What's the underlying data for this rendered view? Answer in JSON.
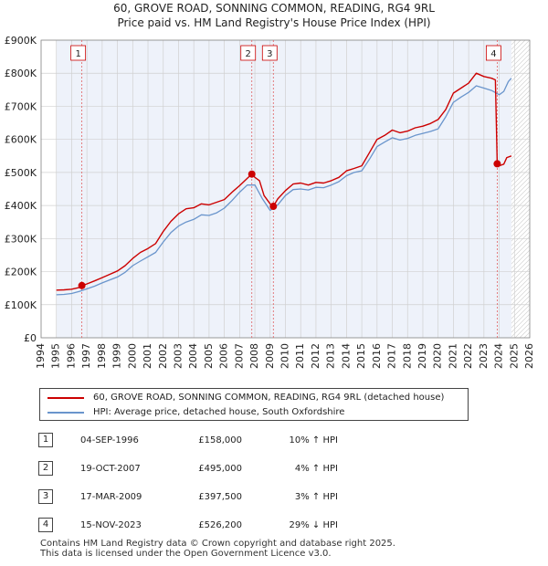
{
  "chart_data": {
    "type": "line",
    "title": "60, GROVE ROAD, SONNING COMMON, READING, RG4 9RL",
    "subtitle": "Price paid vs. HM Land Registry's House Price Index (HPI)",
    "xlim": [
      1994,
      2026
    ],
    "ylim": [
      0,
      900000
    ],
    "x_ticks": [
      "1994",
      "1995",
      "1996",
      "1997",
      "1998",
      "1999",
      "2000",
      "2001",
      "2002",
      "2003",
      "2004",
      "2005",
      "2006",
      "2007",
      "2008",
      "2009",
      "2010",
      "2011",
      "2012",
      "2013",
      "2014",
      "2015",
      "2016",
      "2017",
      "2018",
      "2019",
      "2020",
      "2021",
      "2022",
      "2023",
      "2024",
      "2025",
      "2026"
    ],
    "y_ticks": [
      {
        "value": 0,
        "label": "£0"
      },
      {
        "value": 100000,
        "label": "£100K"
      },
      {
        "value": 200000,
        "label": "£200K"
      },
      {
        "value": 300000,
        "label": "£300K"
      },
      {
        "value": 400000,
        "label": "£400K"
      },
      {
        "value": 500000,
        "label": "£500K"
      },
      {
        "value": 600000,
        "label": "£600K"
      },
      {
        "value": 700000,
        "label": "£700K"
      },
      {
        "value": 800000,
        "label": "£800K"
      },
      {
        "value": 900000,
        "label": "£900K"
      }
    ],
    "data_start": 1995.0,
    "data_end": 2024.8,
    "shaded_ranges": [
      [
        1994,
        1995.0
      ],
      [
        2024.8,
        2026
      ]
    ],
    "series": [
      {
        "name": "60, GROVE ROAD, SONNING COMMON, READING, RG4 9RL (detached house)",
        "color": "#cc0000",
        "points": [
          [
            1995.0,
            144000
          ],
          [
            1995.5,
            145000
          ],
          [
            1996.0,
            147000
          ],
          [
            1996.5,
            152000
          ],
          [
            1996.67,
            158000
          ],
          [
            1997.0,
            163000
          ],
          [
            1997.5,
            172000
          ],
          [
            1998.0,
            182000
          ],
          [
            1998.5,
            192000
          ],
          [
            1999.0,
            202000
          ],
          [
            1999.5,
            218000
          ],
          [
            2000.0,
            240000
          ],
          [
            2000.5,
            258000
          ],
          [
            2001.0,
            270000
          ],
          [
            2001.5,
            285000
          ],
          [
            2002.0,
            322000
          ],
          [
            2002.5,
            352000
          ],
          [
            2003.0,
            375000
          ],
          [
            2003.5,
            390000
          ],
          [
            2004.0,
            393000
          ],
          [
            2004.5,
            405000
          ],
          [
            2005.0,
            402000
          ],
          [
            2005.5,
            410000
          ],
          [
            2006.0,
            418000
          ],
          [
            2006.5,
            440000
          ],
          [
            2007.0,
            460000
          ],
          [
            2007.5,
            482000
          ],
          [
            2007.8,
            495000
          ],
          [
            2008.0,
            485000
          ],
          [
            2008.3,
            475000
          ],
          [
            2008.6,
            430000
          ],
          [
            2009.0,
            405000
          ],
          [
            2009.21,
            397500
          ],
          [
            2009.5,
            420000
          ],
          [
            2010.0,
            445000
          ],
          [
            2010.5,
            465000
          ],
          [
            2011.0,
            468000
          ],
          [
            2011.5,
            462000
          ],
          [
            2012.0,
            470000
          ],
          [
            2012.5,
            468000
          ],
          [
            2013.0,
            475000
          ],
          [
            2013.5,
            485000
          ],
          [
            2014.0,
            505000
          ],
          [
            2014.5,
            512000
          ],
          [
            2015.0,
            520000
          ],
          [
            2015.5,
            560000
          ],
          [
            2016.0,
            600000
          ],
          [
            2016.5,
            612000
          ],
          [
            2017.0,
            628000
          ],
          [
            2017.5,
            620000
          ],
          [
            2018.0,
            625000
          ],
          [
            2018.5,
            635000
          ],
          [
            2019.0,
            640000
          ],
          [
            2019.5,
            648000
          ],
          [
            2020.0,
            660000
          ],
          [
            2020.5,
            690000
          ],
          [
            2021.0,
            740000
          ],
          [
            2021.5,
            755000
          ],
          [
            2022.0,
            770000
          ],
          [
            2022.5,
            800000
          ],
          [
            2023.0,
            790000
          ],
          [
            2023.5,
            785000
          ],
          [
            2023.75,
            780000
          ],
          [
            2023.87,
            526200
          ],
          [
            2024.0,
            520000
          ],
          [
            2024.3,
            525000
          ],
          [
            2024.5,
            545000
          ],
          [
            2024.8,
            550000
          ]
        ]
      },
      {
        "name": "HPI: Average price, detached house, South Oxfordshire",
        "color": "#6a95cc",
        "points": [
          [
            1995.0,
            130000
          ],
          [
            1995.5,
            131000
          ],
          [
            1996.0,
            134000
          ],
          [
            1996.5,
            140000
          ],
          [
            1997.0,
            148000
          ],
          [
            1997.5,
            156000
          ],
          [
            1998.0,
            166000
          ],
          [
            1998.5,
            175000
          ],
          [
            1999.0,
            184000
          ],
          [
            1999.5,
            198000
          ],
          [
            2000.0,
            218000
          ],
          [
            2000.5,
            232000
          ],
          [
            2001.0,
            245000
          ],
          [
            2001.5,
            258000
          ],
          [
            2002.0,
            290000
          ],
          [
            2002.5,
            318000
          ],
          [
            2003.0,
            338000
          ],
          [
            2003.5,
            350000
          ],
          [
            2004.0,
            358000
          ],
          [
            2004.5,
            372000
          ],
          [
            2005.0,
            370000
          ],
          [
            2005.5,
            378000
          ],
          [
            2006.0,
            392000
          ],
          [
            2006.5,
            415000
          ],
          [
            2007.0,
            440000
          ],
          [
            2007.5,
            462000
          ],
          [
            2008.0,
            462000
          ],
          [
            2008.5,
            420000
          ],
          [
            2009.0,
            385000
          ],
          [
            2009.5,
            402000
          ],
          [
            2010.0,
            430000
          ],
          [
            2010.5,
            448000
          ],
          [
            2011.0,
            450000
          ],
          [
            2011.5,
            447000
          ],
          [
            2012.0,
            455000
          ],
          [
            2012.5,
            454000
          ],
          [
            2013.0,
            462000
          ],
          [
            2013.5,
            472000
          ],
          [
            2014.0,
            490000
          ],
          [
            2014.5,
            500000
          ],
          [
            2015.0,
            505000
          ],
          [
            2015.5,
            540000
          ],
          [
            2016.0,
            578000
          ],
          [
            2016.5,
            592000
          ],
          [
            2017.0,
            605000
          ],
          [
            2017.5,
            598000
          ],
          [
            2018.0,
            603000
          ],
          [
            2018.5,
            612000
          ],
          [
            2019.0,
            618000
          ],
          [
            2019.5,
            624000
          ],
          [
            2020.0,
            632000
          ],
          [
            2020.5,
            668000
          ],
          [
            2021.0,
            712000
          ],
          [
            2021.5,
            728000
          ],
          [
            2022.0,
            742000
          ],
          [
            2022.5,
            762000
          ],
          [
            2023.0,
            755000
          ],
          [
            2023.5,
            748000
          ],
          [
            2024.0,
            735000
          ],
          [
            2024.3,
            745000
          ],
          [
            2024.6,
            775000
          ],
          [
            2024.8,
            785000
          ]
        ]
      }
    ],
    "markers": [
      {
        "label": "1",
        "x": 1996.67,
        "y": 158000
      },
      {
        "label": "2",
        "x": 2007.8,
        "y": 495000
      },
      {
        "label": "3",
        "x": 2009.21,
        "y": 397500
      },
      {
        "label": "4",
        "x": 2023.87,
        "y": 526200
      }
    ]
  },
  "legend": [
    {
      "label": "60, GROVE ROAD, SONNING COMMON, READING, RG4 9RL (detached house)",
      "color": "#cc0000"
    },
    {
      "label": "HPI: Average price, detached house, South Oxfordshire",
      "color": "#6a95cc"
    }
  ],
  "transactions": [
    {
      "num": "1",
      "date": "04-SEP-1996",
      "price": "£158,000",
      "hpi": "10% ↑ HPI"
    },
    {
      "num": "2",
      "date": "19-OCT-2007",
      "price": "£495,000",
      "hpi": "4% ↑ HPI"
    },
    {
      "num": "3",
      "date": "17-MAR-2009",
      "price": "£397,500",
      "hpi": "3% ↑ HPI"
    },
    {
      "num": "4",
      "date": "15-NOV-2023",
      "price": "£526,200",
      "hpi": "29% ↓ HPI"
    }
  ],
  "footer": {
    "line1": "Contains HM Land Registry data © Crown copyright and database right 2025.",
    "line2": "This data is licensed under the Open Government Licence v3.0."
  }
}
